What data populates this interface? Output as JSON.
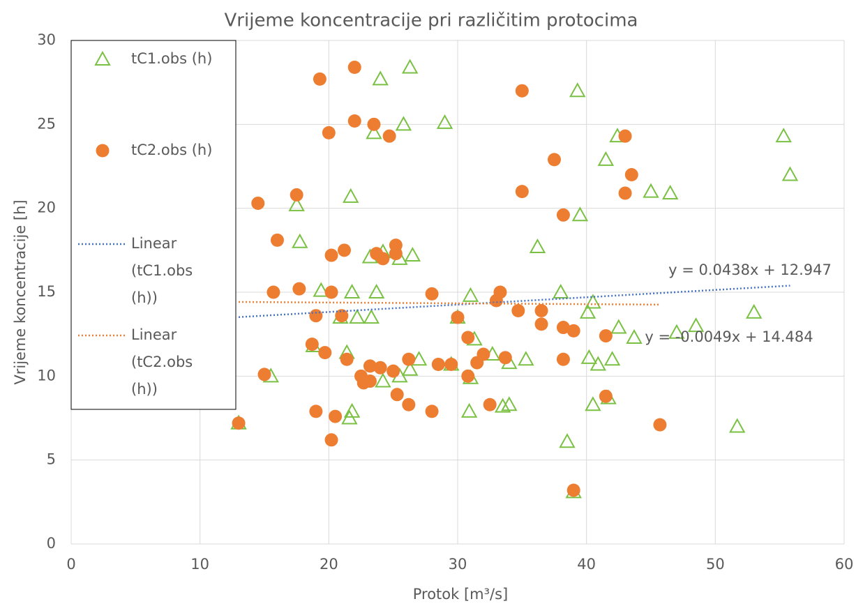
{
  "chart_data": {
    "type": "scatter",
    "title": "Vrijeme koncentracije pri različitim protocima",
    "x_label": "Protok [m³/s]",
    "y_label": "Vrijeme koncentracije [h]",
    "xlim": [
      0,
      60
    ],
    "xticks": [
      0,
      10,
      20,
      30,
      40,
      50,
      60
    ],
    "ylim": [
      0,
      30
    ],
    "yticks": [
      0,
      5,
      10,
      15,
      20,
      25,
      30
    ],
    "grid": true,
    "legend": "left",
    "series": [
      {
        "name": "tC1.obs (h)",
        "color": "#7ac143",
        "marker": "triangle",
        "x": [
          13.0,
          15.5,
          17.5,
          17.75,
          19.4,
          18.8,
          21.7,
          20.9,
          21.8,
          21.4,
          21.8,
          21.6,
          22.2,
          23.2,
          23.3,
          23.5,
          24.0,
          23.7,
          24.2,
          24.2,
          25.5,
          25.8,
          25.5,
          26.3,
          26.5,
          26.3,
          27.0,
          29.0,
          29.5,
          30.0,
          31.0,
          31.3,
          31.0,
          30.9,
          32.7,
          33.5,
          34.0,
          34.0,
          35.3,
          36.2,
          38.0,
          38.5,
          39.0,
          39.3,
          39.5,
          40.1,
          40.2,
          40.5,
          40.5,
          40.9,
          41.5,
          41.7,
          42.0,
          42.4,
          42.5,
          43.7,
          45.0,
          46.5,
          47.0,
          48.5,
          51.7,
          53.0,
          55.3,
          55.8
        ],
        "values": [
          7.2,
          10.0,
          20.2,
          18.0,
          15.1,
          11.8,
          20.7,
          13.5,
          15.0,
          11.4,
          7.9,
          7.5,
          13.5,
          17.1,
          13.5,
          24.5,
          27.7,
          15.0,
          17.4,
          9.7,
          17.0,
          25.0,
          10.0,
          28.4,
          17.2,
          10.4,
          11.0,
          25.1,
          10.7,
          13.5,
          14.8,
          12.2,
          9.9,
          7.9,
          11.3,
          8.2,
          8.3,
          10.8,
          11.0,
          17.7,
          15.0,
          6.1,
          3.1,
          27.0,
          19.6,
          13.8,
          11.1,
          14.4,
          8.3,
          10.7,
          22.9,
          8.7,
          11.0,
          24.3,
          12.9,
          12.3,
          21.0,
          20.9,
          12.6,
          13.0,
          7.0,
          13.8,
          24.3,
          22.0
        ]
      },
      {
        "name": "tC2.obs (h)",
        "color": "#ed7d31",
        "marker": "circle",
        "x": [
          13.0,
          14.5,
          15.0,
          15.7,
          16.0,
          17.5,
          17.7,
          18.7,
          19.0,
          19.0,
          19.3,
          19.7,
          20.0,
          20.2,
          20.2,
          20.2,
          20.5,
          21.0,
          21.2,
          21.4,
          22.0,
          22.0,
          22.5,
          22.7,
          23.2,
          23.2,
          23.5,
          23.7,
          24.0,
          24.2,
          24.7,
          25.0,
          25.2,
          25.2,
          25.3,
          26.2,
          26.2,
          28.0,
          28.0,
          28.5,
          29.5,
          30.0,
          30.8,
          30.8,
          31.5,
          32.0,
          32.5,
          33.0,
          33.3,
          33.7,
          34.7,
          35.0,
          35.0,
          36.5,
          36.5,
          37.5,
          38.2,
          38.2,
          38.2,
          39.0,
          39.0,
          41.5,
          41.5,
          43.0,
          43.0,
          43.5,
          45.7
        ],
        "values": [
          7.2,
          20.3,
          10.1,
          15.0,
          18.1,
          20.8,
          15.2,
          11.9,
          13.6,
          7.9,
          27.7,
          11.4,
          24.5,
          17.2,
          15.0,
          6.2,
          7.6,
          13.6,
          17.5,
          11.0,
          28.4,
          25.2,
          10.0,
          9.6,
          10.6,
          9.7,
          25.0,
          17.3,
          10.5,
          17.0,
          24.3,
          10.3,
          17.8,
          17.3,
          8.9,
          11.0,
          8.3,
          14.9,
          7.9,
          10.7,
          10.7,
          13.5,
          12.3,
          10.0,
          10.8,
          11.3,
          8.3,
          14.5,
          15.0,
          11.1,
          13.9,
          27.0,
          21.0,
          13.9,
          13.1,
          22.9,
          19.6,
          12.9,
          11.0,
          12.7,
          3.2,
          12.4,
          8.8,
          24.3,
          20.9,
          22.0,
          7.1
        ]
      }
    ],
    "trendlines": [
      {
        "name": "Linear (tC1.obs (h))",
        "color": "#4472c4",
        "x": [
          13.0,
          55.8
        ],
        "values": [
          13.516,
          15.391
        ],
        "equation": "y = 0.0438x + 12.947"
      },
      {
        "name": "Linear (tC2.obs (h))",
        "color": "#ed7d31",
        "x": [
          13.0,
          45.7
        ],
        "values": [
          14.42,
          14.26
        ],
        "equation": "y = -0.0049x + 14.484"
      }
    ]
  }
}
